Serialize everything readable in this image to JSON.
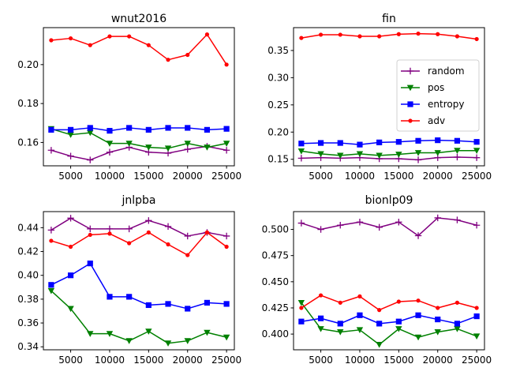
{
  "colors": {
    "random": "#800080",
    "pos": "#008000",
    "entropy": "#0000ff",
    "adv": "#ff0000"
  },
  "markers": {
    "random": "plus",
    "pos": "triangle-down",
    "entropy": "square",
    "adv": "circle"
  },
  "chart_data": [
    {
      "type": "line",
      "title": "wnut2016",
      "xlim": [
        1500,
        26000
      ],
      "ylim": [
        0.148,
        0.219
      ],
      "xticks": [
        5000,
        10000,
        15000,
        20000,
        25000
      ],
      "xtick_labels": [
        "5000",
        "10000",
        "15000",
        "20000",
        "25000"
      ],
      "yticks": [
        0.16,
        0.18,
        0.2
      ],
      "ytick_labels": [
        "0.16",
        "0.18",
        "0.20"
      ],
      "x": [
        2500,
        5000,
        7500,
        10000,
        12500,
        15000,
        17500,
        20000,
        22500,
        25000
      ],
      "series": [
        {
          "key": "random",
          "values": [
            0.156,
            0.153,
            0.151,
            0.155,
            0.1575,
            0.155,
            0.1545,
            0.1565,
            0.158,
            0.156
          ]
        },
        {
          "key": "pos",
          "values": [
            0.167,
            0.164,
            0.165,
            0.1595,
            0.1595,
            0.1575,
            0.157,
            0.1595,
            0.1575,
            0.1595
          ]
        },
        {
          "key": "entropy",
          "values": [
            0.1665,
            0.1665,
            0.1675,
            0.166,
            0.1675,
            0.1665,
            0.1675,
            0.1675,
            0.1665,
            0.167
          ]
        },
        {
          "key": "adv",
          "values": [
            0.2125,
            0.2135,
            0.21,
            0.2145,
            0.2145,
            0.21,
            0.2025,
            0.205,
            0.2155,
            0.2
          ]
        }
      ]
    },
    {
      "type": "line",
      "title": "fin",
      "xlim": [
        1500,
        26000
      ],
      "ylim": [
        0.138,
        0.392
      ],
      "xticks": [
        5000,
        10000,
        15000,
        20000,
        25000
      ],
      "xtick_labels": [
        "5000",
        "10000",
        "15000",
        "20000",
        "25000"
      ],
      "yticks": [
        0.15,
        0.2,
        0.25,
        0.3,
        0.35
      ],
      "ytick_labels": [
        "0.15",
        "0.20",
        "0.25",
        "0.30",
        "0.35"
      ],
      "x": [
        2500,
        5000,
        7500,
        10000,
        12500,
        15000,
        17500,
        20000,
        22500,
        25000
      ],
      "legend": {
        "placement": "center-right",
        "entries": [
          "random",
          "pos",
          "entropy",
          "adv"
        ]
      },
      "series": [
        {
          "key": "random",
          "values": [
            0.152,
            0.153,
            0.152,
            0.153,
            0.151,
            0.151,
            0.149,
            0.153,
            0.154,
            0.153
          ]
        },
        {
          "key": "pos",
          "values": [
            0.165,
            0.16,
            0.157,
            0.16,
            0.157,
            0.159,
            0.162,
            0.162,
            0.166,
            0.166
          ]
        },
        {
          "key": "entropy",
          "values": [
            0.179,
            0.18,
            0.18,
            0.177,
            0.181,
            0.182,
            0.184,
            0.185,
            0.184,
            0.182
          ]
        },
        {
          "key": "adv",
          "values": [
            0.373,
            0.379,
            0.379,
            0.376,
            0.376,
            0.38,
            0.381,
            0.38,
            0.376,
            0.371
          ]
        }
      ]
    },
    {
      "type": "line",
      "title": "jnlpba",
      "xlim": [
        1500,
        26000
      ],
      "ylim": [
        0.3375,
        0.4535
      ],
      "xticks": [
        5000,
        10000,
        15000,
        20000,
        25000
      ],
      "xtick_labels": [
        "5000",
        "10000",
        "15000",
        "20000",
        "25000"
      ],
      "yticks": [
        0.34,
        0.36,
        0.38,
        0.4,
        0.42,
        0.44
      ],
      "ytick_labels": [
        "0.34",
        "0.36",
        "0.38",
        "0.40",
        "0.42",
        "0.44"
      ],
      "x": [
        2500,
        5000,
        7500,
        10000,
        12500,
        15000,
        17500,
        20000,
        22500,
        25000
      ],
      "series": [
        {
          "key": "random",
          "values": [
            0.438,
            0.448,
            0.439,
            0.439,
            0.439,
            0.446,
            0.441,
            0.433,
            0.436,
            0.433
          ]
        },
        {
          "key": "pos",
          "values": [
            0.387,
            0.372,
            0.351,
            0.351,
            0.345,
            0.353,
            0.343,
            0.345,
            0.352,
            0.348
          ]
        },
        {
          "key": "entropy",
          "values": [
            0.392,
            0.4,
            0.41,
            0.382,
            0.382,
            0.375,
            0.376,
            0.372,
            0.377,
            0.376
          ]
        },
        {
          "key": "adv",
          "values": [
            0.429,
            0.424,
            0.434,
            0.435,
            0.427,
            0.436,
            0.426,
            0.417,
            0.436,
            0.424
          ]
        }
      ]
    },
    {
      "type": "line",
      "title": "bionlp09",
      "xlim": [
        1500,
        26000
      ],
      "ylim": [
        0.385,
        0.517
      ],
      "xticks": [
        5000,
        10000,
        15000,
        20000,
        25000
      ],
      "xtick_labels": [
        "5000",
        "10000",
        "15000",
        "20000",
        "25000"
      ],
      "yticks": [
        0.4,
        0.425,
        0.45,
        0.475,
        0.5
      ],
      "ytick_labels": [
        "0.400",
        "0.425",
        "0.450",
        "0.475",
        "0.500"
      ],
      "x": [
        2500,
        5000,
        7500,
        10000,
        12500,
        15000,
        17500,
        20000,
        22500,
        25000
      ],
      "series": [
        {
          "key": "random",
          "values": [
            0.506,
            0.5,
            0.504,
            0.507,
            0.502,
            0.507,
            0.494,
            0.511,
            0.509,
            0.504
          ]
        },
        {
          "key": "pos",
          "values": [
            0.43,
            0.405,
            0.402,
            0.404,
            0.39,
            0.405,
            0.397,
            0.402,
            0.405,
            0.398
          ]
        },
        {
          "key": "entropy",
          "values": [
            0.412,
            0.415,
            0.41,
            0.418,
            0.41,
            0.412,
            0.418,
            0.414,
            0.41,
            0.417
          ]
        },
        {
          "key": "adv",
          "values": [
            0.425,
            0.437,
            0.43,
            0.436,
            0.423,
            0.431,
            0.432,
            0.425,
            0.43,
            0.425
          ]
        }
      ]
    }
  ]
}
